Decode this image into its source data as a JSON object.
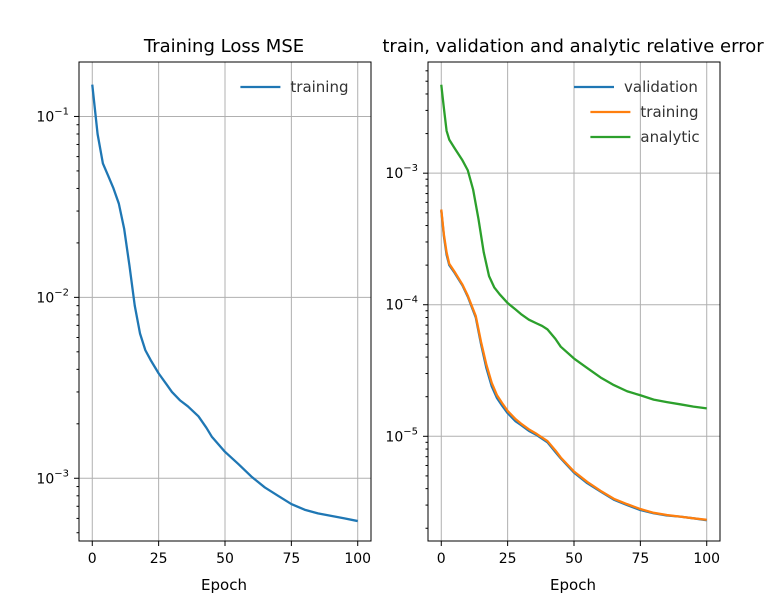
{
  "chart_data": [
    {
      "type": "line",
      "title": "Training Loss MSE",
      "xlabel": "Epoch",
      "ylabel": "",
      "yscale": "log",
      "xlim": [
        -5,
        105
      ],
      "ylim": [
        0.00045,
        0.2
      ],
      "x_ticks": [
        0,
        25,
        50,
        75,
        100
      ],
      "x_tick_labels": [
        "0",
        "25",
        "50",
        "75",
        "100"
      ],
      "y_ticks": [
        0.001,
        0.01,
        0.1
      ],
      "y_tick_labels": [
        {
          "base": "10",
          "exp": "−3"
        },
        {
          "base": "10",
          "exp": "−2"
        },
        {
          "base": "10",
          "exp": "−1"
        }
      ],
      "grid": true,
      "legend_position": "upper right",
      "series": [
        {
          "name": "training",
          "color": "#1f77b4",
          "x": [
            0,
            2,
            4,
            6,
            8,
            10,
            12,
            14,
            16,
            18,
            20,
            22,
            25,
            28,
            30,
            33,
            36,
            40,
            43,
            45,
            50,
            55,
            60,
            65,
            70,
            75,
            80,
            85,
            90,
            95,
            100
          ],
          "y": [
            0.15,
            0.08,
            0.055,
            0.047,
            0.04,
            0.033,
            0.024,
            0.015,
            0.009,
            0.0063,
            0.0051,
            0.0045,
            0.0038,
            0.0033,
            0.003,
            0.0027,
            0.0025,
            0.0022,
            0.0019,
            0.0017,
            0.0014,
            0.0012,
            0.00102,
            0.00089,
            0.0008,
            0.00072,
            0.00067,
            0.00064,
            0.00062,
            0.0006,
            0.00058
          ]
        }
      ]
    },
    {
      "type": "line",
      "title": "train, validation and analytic relative error",
      "xlabel": "Epoch",
      "ylabel": "",
      "yscale": "log",
      "xlim": [
        -5,
        105
      ],
      "ylim": [
        1.6e-06,
        0.007
      ],
      "x_ticks": [
        0,
        25,
        50,
        75,
        100
      ],
      "x_tick_labels": [
        "0",
        "25",
        "50",
        "75",
        "100"
      ],
      "y_ticks": [
        1e-05,
        0.0001,
        0.001
      ],
      "y_tick_labels": [
        {
          "base": "10",
          "exp": "−5"
        },
        {
          "base": "10",
          "exp": "−4"
        },
        {
          "base": "10",
          "exp": "−3"
        }
      ],
      "grid": true,
      "legend_position": "upper right",
      "series": [
        {
          "name": "validation",
          "color": "#1f77b4",
          "x": [
            0,
            1,
            2,
            3,
            5,
            8,
            10,
            13,
            15,
            17,
            19,
            21,
            23,
            25,
            28,
            30,
            33,
            36,
            40,
            43,
            45,
            50,
            55,
            60,
            65,
            70,
            75,
            80,
            85,
            90,
            95,
            100
          ],
          "y": [
            0.00052,
            0.00033,
            0.00024,
            0.0002,
            0.000175,
            0.00014,
            0.000115,
            8e-05,
            5e-05,
            3.3e-05,
            2.4e-05,
            1.95e-05,
            1.7e-05,
            1.5e-05,
            1.3e-05,
            1.22e-05,
            1.1e-05,
            1.02e-05,
            9e-06,
            7.6e-06,
            6.8e-06,
            5.3e-06,
            4.4e-06,
            3.8e-06,
            3.3e-06,
            3e-06,
            2.75e-06,
            2.6e-06,
            2.5e-06,
            2.45e-06,
            2.38e-06,
            2.3e-06
          ]
        },
        {
          "name": "training",
          "color": "#ff7f0e",
          "x": [
            0,
            1,
            2,
            3,
            5,
            8,
            10,
            13,
            15,
            17,
            19,
            21,
            23,
            25,
            28,
            30,
            33,
            36,
            40,
            43,
            45,
            50,
            55,
            60,
            65,
            70,
            75,
            80,
            85,
            90,
            95,
            100
          ],
          "y": [
            0.00053,
            0.00034,
            0.00025,
            0.000205,
            0.000178,
            0.000142,
            0.000117,
            8.2e-05,
            5.2e-05,
            3.5e-05,
            2.55e-05,
            2.05e-05,
            1.78e-05,
            1.56e-05,
            1.35e-05,
            1.25e-05,
            1.13e-05,
            1.04e-05,
            9.2e-06,
            7.8e-06,
            6.9e-06,
            5.4e-06,
            4.5e-06,
            3.85e-06,
            3.35e-06,
            3.05e-06,
            2.8e-06,
            2.62e-06,
            2.52e-06,
            2.45e-06,
            2.38e-06,
            2.32e-06
          ]
        },
        {
          "name": "analytic",
          "color": "#2ca02c",
          "x": [
            0,
            1,
            2,
            3,
            5,
            8,
            10,
            12,
            14,
            16,
            18,
            20,
            22,
            25,
            28,
            30,
            33,
            36,
            38,
            40,
            43,
            45,
            50,
            55,
            60,
            65,
            70,
            75,
            80,
            85,
            90,
            95,
            100
          ],
          "y": [
            0.0047,
            0.0031,
            0.0021,
            0.0018,
            0.00155,
            0.00125,
            0.00105,
            0.00075,
            0.00045,
            0.00025,
            0.000165,
            0.000135,
            0.00012,
            0.000103,
            9.2e-05,
            8.5e-05,
            7.7e-05,
            7.2e-05,
            6.9e-05,
            6.5e-05,
            5.5e-05,
            4.8e-05,
            3.9e-05,
            3.3e-05,
            2.8e-05,
            2.45e-05,
            2.2e-05,
            2.05e-05,
            1.9e-05,
            1.82e-05,
            1.75e-05,
            1.68e-05,
            1.63e-05
          ]
        }
      ]
    }
  ]
}
